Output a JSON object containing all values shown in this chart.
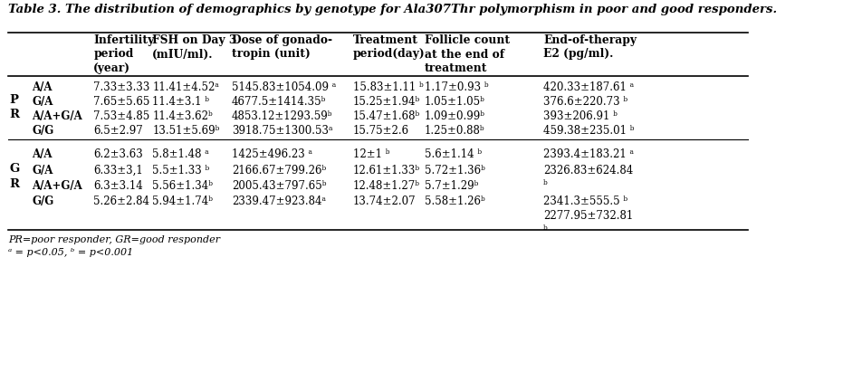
{
  "title": "Table 3. The distribution of demographics by genotype for Ala307Thr polymorphism in poor and good responders.",
  "col_headers": [
    "Infertility\nperiod\n(year)",
    "FSH on Day 3\n(mIU/ml).",
    "Dose of gonado-\ntropin (unit)",
    "Treatment\nperiod(day)",
    "Follicle count\nat the end of\ntreatment",
    "End-of-therapy\nE2 (pg/ml)."
  ],
  "PR_rows": [
    [
      "A/A",
      "7.33±3.33",
      "11.41±4.52ᵃ",
      "5145.83±1054.09 ᵃ",
      "15.83±1.11 ᵇ",
      "1.17±0.93 ᵇ",
      "420.33±187.61 ᵃ"
    ],
    [
      "G/A",
      "7.65±5.65",
      "11.4±3.1 ᵇ",
      "4677.5±1414.35ᵇ",
      "15.25±1.94ᵇ",
      "1.05±1.05ᵇ",
      "376.6±220.73 ᵇ"
    ],
    [
      "A/A+G/A",
      "7.53±4.85",
      "11.4±3.62ᵇ",
      "4853.12±1293.59ᵇ",
      "15.47±1.68ᵇ",
      "1.09±0.99ᵇ",
      "393±206.91 ᵇ"
    ],
    [
      "G/G",
      "6.5±2.97",
      "13.51±5.69ᵇ",
      "3918.75±1300.53ᵃ",
      "15.75±2.6",
      "1.25±0.88ᵇ",
      "459.38±235.01 ᵇ"
    ]
  ],
  "GR_rows": [
    [
      "A/A",
      "6.2±3.63",
      "5.8±1.48 ᵃ",
      "1425±496.23 ᵃ",
      "12±1 ᵇ",
      "5.6±1.14 ᵇ",
      "2393.4±183.21 ᵃ"
    ],
    [
      "G/A",
      "6.33±3,1",
      "5.5±1.33 ᵇ",
      "2166.67±799.26ᵇ",
      "12.61±1.33ᵇ",
      "5.72±1.36ᵇ",
      "2326.83±624.84\nᵇ"
    ],
    [
      "A/A+G/A",
      "6.3±3.14",
      "5.56±1.34ᵇ",
      "2005.43±797.65ᵇ",
      "12.48±1.27ᵇ",
      "5.7±1.29ᵇ",
      ""
    ],
    [
      "G/G",
      "5.26±2.84",
      "5.94±1.74ᵇ",
      "2339.47±923.84ᵃ",
      "13.74±2.07",
      "5.58±1.26ᵇ",
      "2341.3±555.5 ᵇ\n2277.95±732.81\nᵇ"
    ]
  ],
  "PR_label": [
    "P",
    "R"
  ],
  "GR_label": [
    "G",
    "R"
  ],
  "footnote1": "PR=poor responder, GR=good responder",
  "footnote2": "ᵃ = p<0.05, ᵇ = p<0.001",
  "bg_color": "#ffffff",
  "text_color": "#000000"
}
